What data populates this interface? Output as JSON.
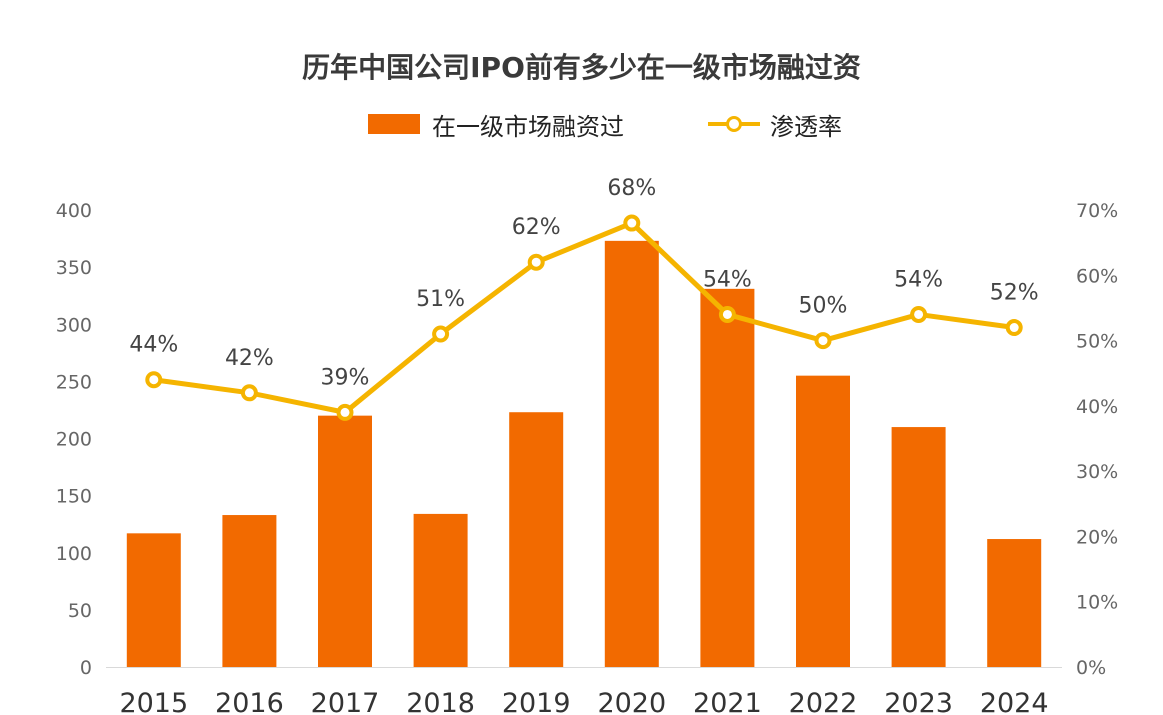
{
  "chart_data": {
    "type": "bar",
    "title": "历年中国公司IPO前有多少在一级市场融过资",
    "categories": [
      "2015",
      "2016",
      "2017",
      "2018",
      "2019",
      "2020",
      "2021",
      "2022",
      "2023",
      "2024"
    ],
    "series": [
      {
        "name": "在一级市场融资过",
        "type": "bar",
        "axis": "left",
        "color": "#F26A00",
        "values": [
          117,
          133,
          220,
          134,
          223,
          373,
          331,
          255,
          210,
          112
        ]
      },
      {
        "name": "渗透率",
        "type": "line",
        "axis": "right",
        "color": "#F5B400",
        "values": [
          44,
          42,
          39,
          51,
          62,
          68,
          54,
          50,
          54,
          52
        ],
        "point_values": [
          44,
          42,
          39,
          51,
          62,
          68,
          54,
          50,
          54,
          52
        ],
        "labels": [
          "44%",
          "42%",
          "39%",
          "51%",
          "62%",
          "68%",
          "54%",
          "50%",
          "54%",
          "52%"
        ]
      }
    ],
    "y_left": {
      "min": 0,
      "max": 400,
      "ticks": [
        "0",
        "50",
        "100",
        "150",
        "200",
        "250",
        "300",
        "350",
        "400"
      ]
    },
    "y_right": {
      "min": 0,
      "max": 70,
      "ticks": [
        "0%",
        "10%",
        "20%",
        "30%",
        "40%",
        "50%",
        "60%",
        "70%"
      ]
    },
    "legend_position": "top-center",
    "grid": false
  }
}
